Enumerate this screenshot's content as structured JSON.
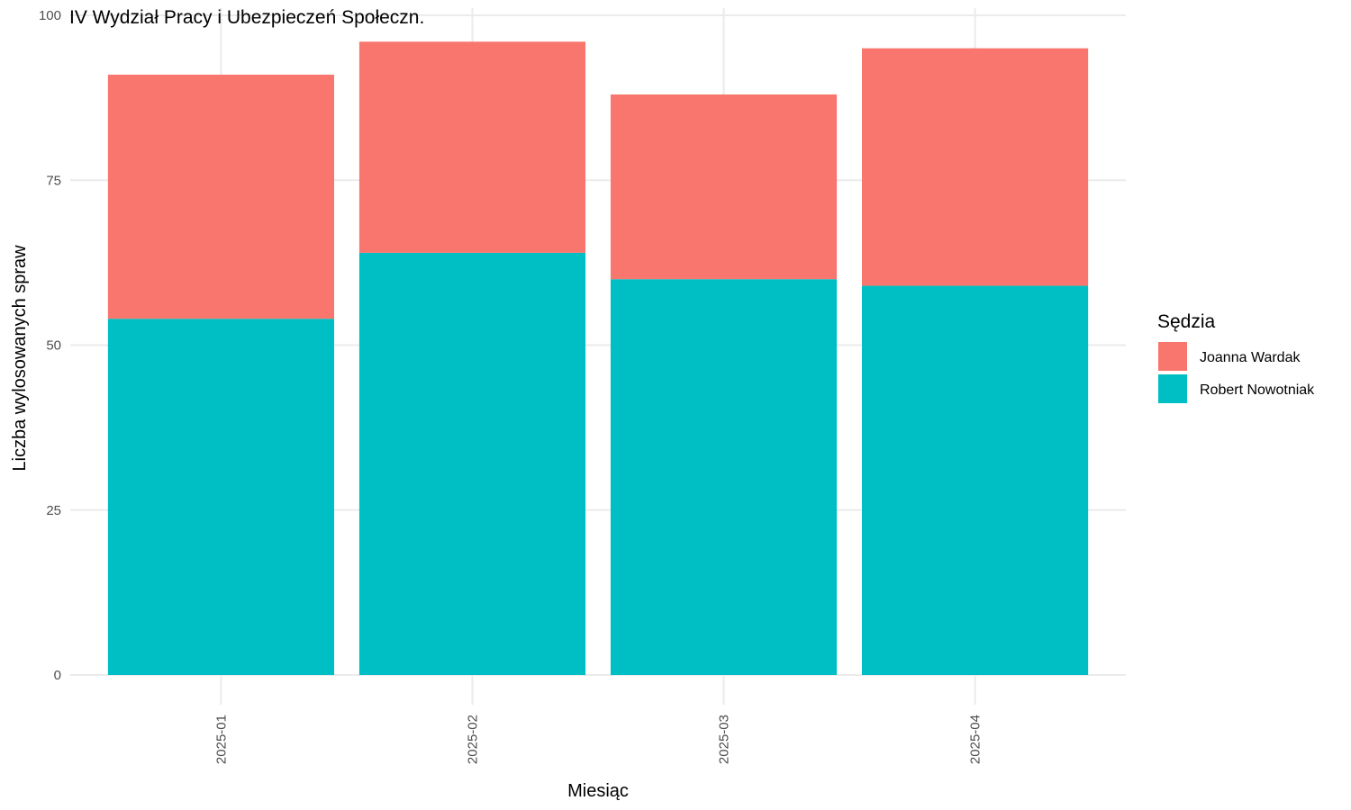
{
  "chart_data": {
    "type": "bar",
    "stacked": true,
    "title": "IV Wydział Pracy i Ubezpieczeń Społeczn.",
    "xlabel": "Miesiąc",
    "ylabel": "Liczba wylosowanych spraw",
    "categories": [
      "2025-01",
      "2025-02",
      "2025-03",
      "2025-04"
    ],
    "series": [
      {
        "name": "Robert Nowotniak",
        "color": "#00BFC4",
        "values": [
          54,
          64,
          60,
          59
        ]
      },
      {
        "name": "Joanna Wardak",
        "color": "#F8766D",
        "values": [
          37,
          32,
          28,
          36
        ]
      }
    ],
    "ylim": [
      0,
      100
    ],
    "yticks": [
      0,
      25,
      50,
      75,
      100
    ],
    "grid": true,
    "legend": {
      "title": "Sędzia",
      "position": "right",
      "entries": [
        "Joanna Wardak",
        "Robert Nowotniak"
      ]
    }
  }
}
